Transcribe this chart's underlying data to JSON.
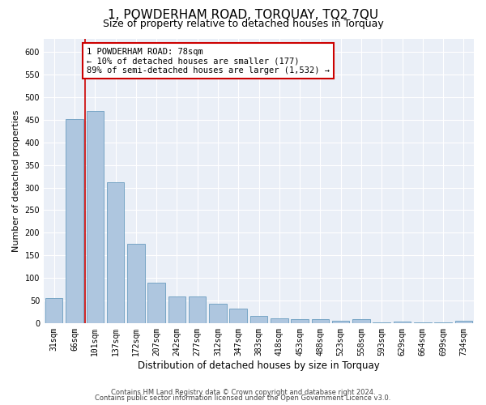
{
  "title": "1, POWDERHAM ROAD, TORQUAY, TQ2 7QU",
  "subtitle": "Size of property relative to detached houses in Torquay",
  "xlabel": "Distribution of detached houses by size in Torquay",
  "ylabel": "Number of detached properties",
  "categories": [
    "31sqm",
    "66sqm",
    "101sqm",
    "137sqm",
    "172sqm",
    "207sqm",
    "242sqm",
    "277sqm",
    "312sqm",
    "347sqm",
    "383sqm",
    "418sqm",
    "453sqm",
    "488sqm",
    "523sqm",
    "558sqm",
    "593sqm",
    "629sqm",
    "664sqm",
    "699sqm",
    "734sqm"
  ],
  "values": [
    55,
    451,
    470,
    311,
    176,
    89,
    58,
    58,
    42,
    32,
    16,
    10,
    9,
    9,
    5,
    8,
    1,
    3,
    1,
    1,
    5
  ],
  "bar_color": "#aec6df",
  "bar_edge_color": "#6a9cbf",
  "vline_x_index": 1,
  "vline_color": "#cc0000",
  "annotation_text": "1 POWDERHAM ROAD: 78sqm\n← 10% of detached houses are smaller (177)\n89% of semi-detached houses are larger (1,532) →",
  "annotation_box_color": "#ffffff",
  "annotation_box_edge_color": "#cc0000",
  "ylim": [
    0,
    630
  ],
  "yticks": [
    0,
    50,
    100,
    150,
    200,
    250,
    300,
    350,
    400,
    450,
    500,
    550,
    600
  ],
  "bg_color": "#eaeff7",
  "footer1": "Contains HM Land Registry data © Crown copyright and database right 2024.",
  "footer2": "Contains public sector information licensed under the Open Government Licence v3.0.",
  "title_fontsize": 11,
  "subtitle_fontsize": 9,
  "xlabel_fontsize": 8.5,
  "ylabel_fontsize": 8,
  "tick_fontsize": 7,
  "annotation_fontsize": 7.5,
  "footer_fontsize": 6
}
